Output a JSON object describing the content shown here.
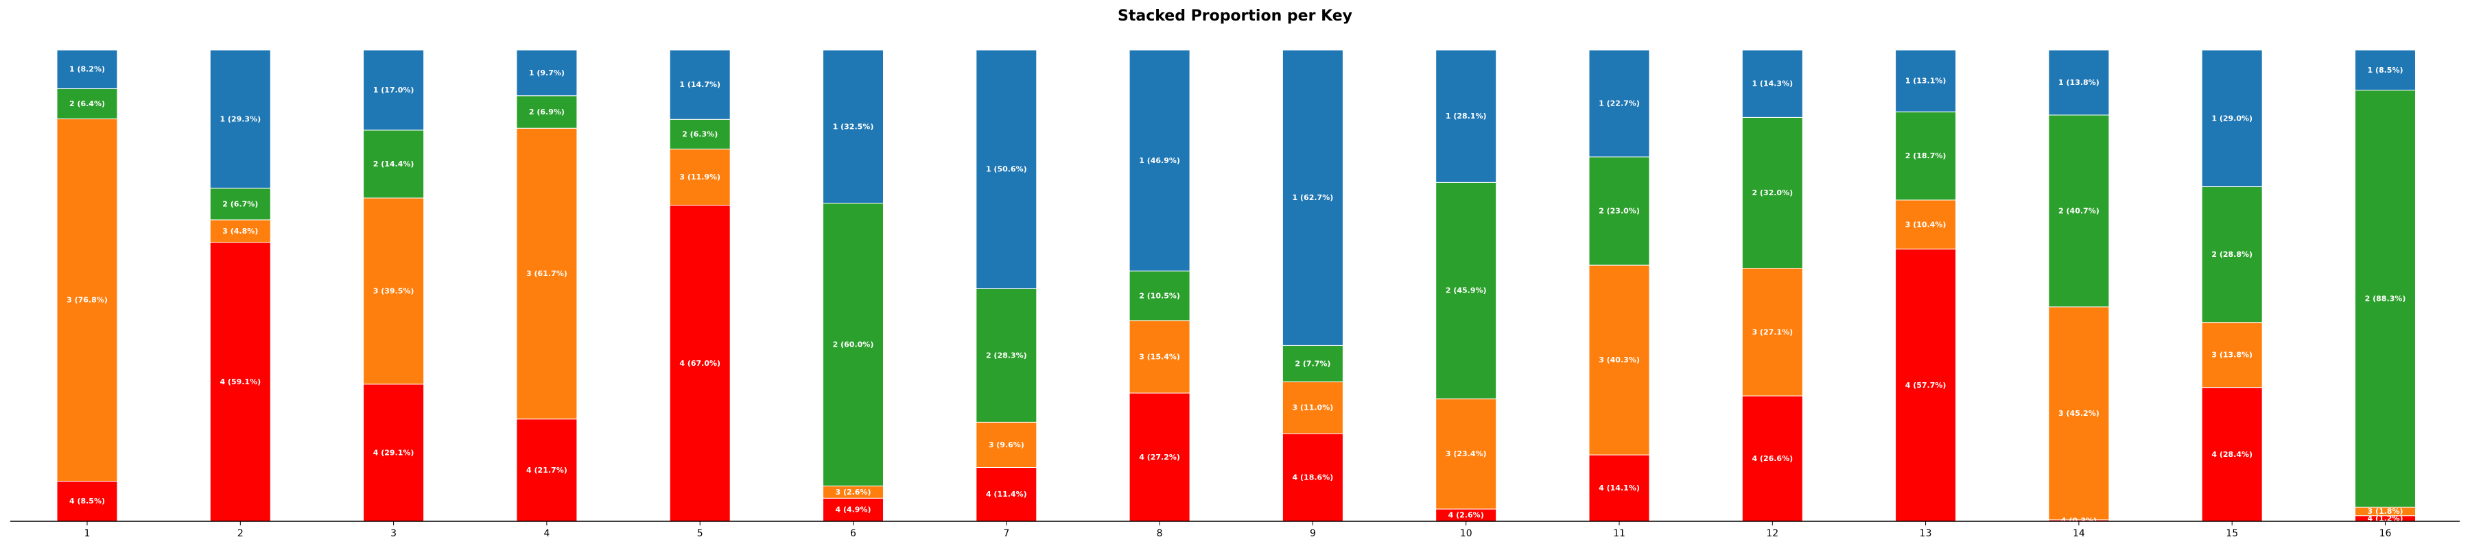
{
  "chart_data": {
    "type": "bar",
    "stacked": true,
    "title": "Stacked Proportion per Key",
    "xlabel": "",
    "ylabel": "",
    "ylim": [
      0,
      100
    ],
    "grid": false,
    "categories": [
      "1",
      "2",
      "3",
      "4",
      "5",
      "6",
      "7",
      "8",
      "9",
      "10",
      "11",
      "12",
      "13",
      "14",
      "15",
      "16"
    ],
    "series": [
      {
        "name": "4",
        "color": "#ff0000",
        "values": [
          8.5,
          59.1,
          29.1,
          21.7,
          67.0,
          4.9,
          11.4,
          27.2,
          18.6,
          2.6,
          14.1,
          26.6,
          57.7,
          0.3,
          28.4,
          1.2
        ],
        "labels": [
          "4 (8.5%)",
          "4 (59.1%)",
          "4 (29.1%)",
          "4 (21.7%)",
          "4 (67.0%)",
          "4 (4.9%)",
          "4 (11.4%)",
          "4 (27.2%)",
          "4 (18.6%)",
          "4 (2.6%)",
          "4 (14.1%)",
          "4 (26.6%)",
          "4 (57.7%)",
          "4 (0.3%)",
          "4 (28.4%)",
          "4 (1.2%)"
        ]
      },
      {
        "name": "3",
        "color": "#ff7f0e",
        "values": [
          76.8,
          4.8,
          39.5,
          61.7,
          11.9,
          2.6,
          9.6,
          15.4,
          11.0,
          23.4,
          40.3,
          27.1,
          10.4,
          45.2,
          13.8,
          1.8
        ],
        "labels": [
          "3 (76.8%)",
          "3 (4.8%)",
          "3 (39.5%)",
          "3 (61.7%)",
          "3 (11.9%)",
          "3 (2.6%)",
          "3 (9.6%)",
          "3 (15.4%)",
          "3 (11.0%)",
          "3 (23.4%)",
          "3 (40.3%)",
          "3 (27.1%)",
          "3 (10.4%)",
          "3 (45.2%)",
          "3 (13.8%)",
          "3 (1.8%)"
        ]
      },
      {
        "name": "2",
        "color": "#2ca02c",
        "values": [
          6.4,
          6.7,
          14.4,
          6.9,
          6.3,
          60.0,
          28.3,
          10.5,
          7.7,
          45.9,
          23.0,
          32.0,
          18.7,
          40.7,
          28.8,
          88.3
        ],
        "labels": [
          "2 (6.4%)",
          "2 (6.7%)",
          "2 (14.4%)",
          "2 (6.9%)",
          "2 (6.3%)",
          "2 (60.0%)",
          "2 (28.3%)",
          "2 (10.5%)",
          "2 (7.7%)",
          "2 (45.9%)",
          "2 (23.0%)",
          "2 (32.0%)",
          "2 (18.7%)",
          "2 (40.7%)",
          "2 (28.8%)",
          "2 (88.3%)"
        ]
      },
      {
        "name": "1",
        "color": "#1f77b4",
        "values": [
          8.2,
          29.3,
          17.0,
          9.7,
          14.7,
          32.5,
          50.6,
          46.9,
          62.7,
          28.1,
          22.7,
          14.3,
          13.1,
          13.8,
          29.0,
          8.5
        ],
        "labels": [
          "1 (8.2%)",
          "1 (29.3%)",
          "1 (17.0%)",
          "1 (9.7%)",
          "1 (14.7%)",
          "1 (32.5%)",
          "1 (50.6%)",
          "1 (46.9%)",
          "1 (62.7%)",
          "1 (28.1%)",
          "1 (22.7%)",
          "1 (14.3%)",
          "1 (13.1%)",
          "1 (13.8%)",
          "1 (29.0%)",
          "1 (8.5%)"
        ]
      }
    ]
  }
}
